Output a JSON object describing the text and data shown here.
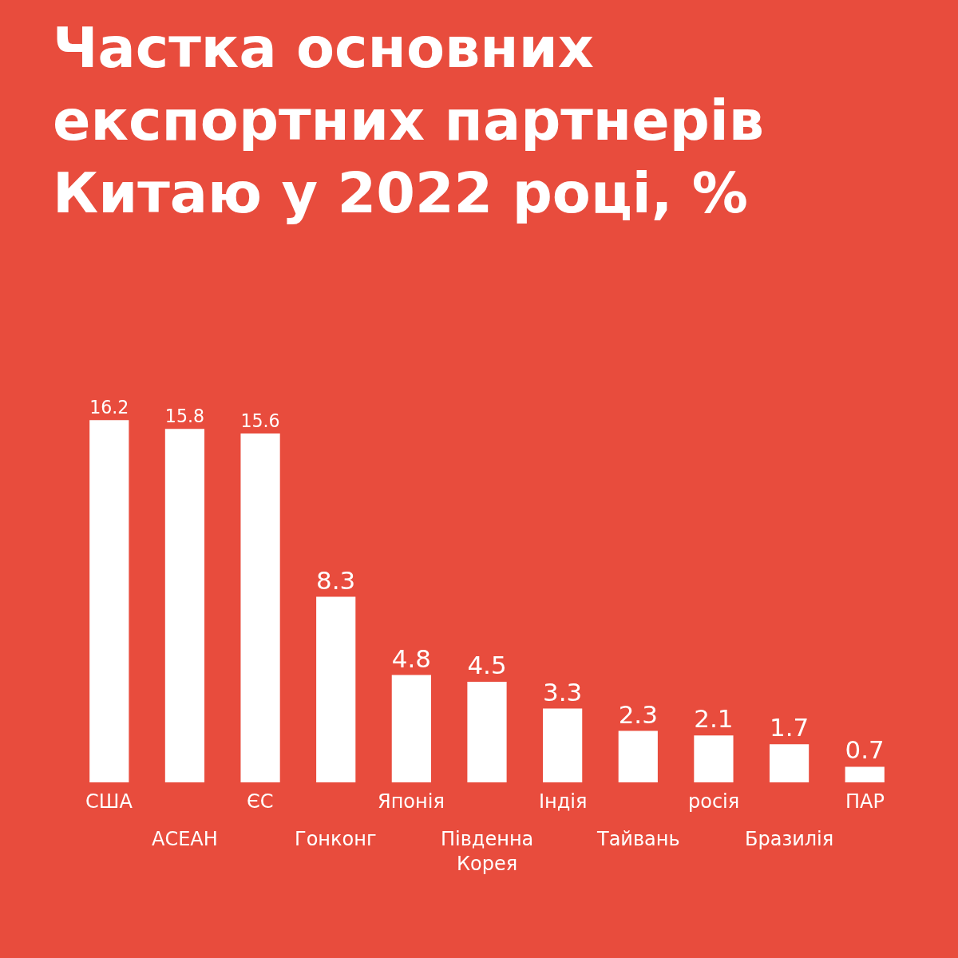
{
  "chart_data": {
    "type": "bar",
    "title": "Частка основних експортних партнерів Китаю у 2022 році, %",
    "categories": [
      "США",
      "АСЕАН",
      "ЄС",
      "Гонконг",
      "Японія",
      "Південна Корея",
      "Індія",
      "Тайвань",
      "росія",
      "Бразилія",
      "ПАР"
    ],
    "values": [
      16.2,
      15.8,
      15.6,
      8.3,
      4.8,
      4.5,
      3.3,
      2.3,
      2.1,
      1.7,
      0.7
    ],
    "color": "#ffffff",
    "data_labels": true,
    "grid": false,
    "legend": false
  }
}
